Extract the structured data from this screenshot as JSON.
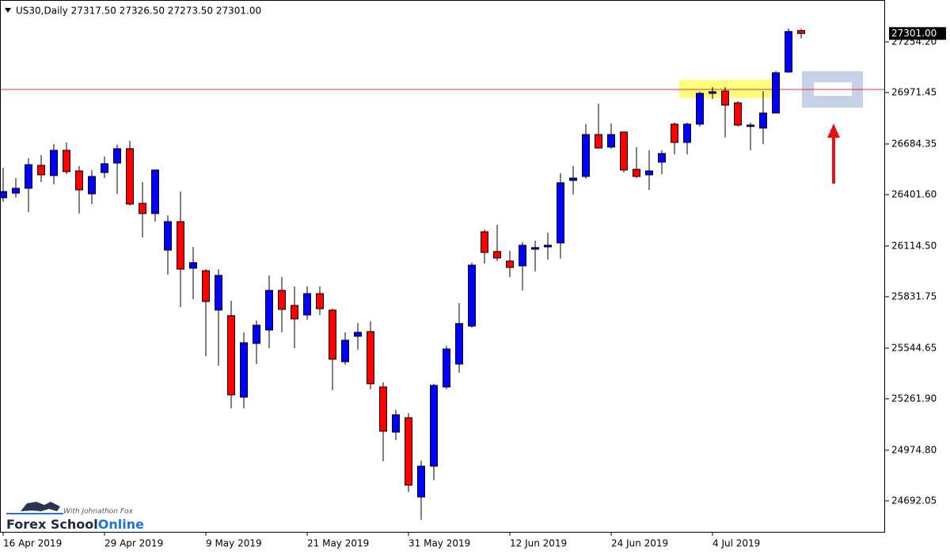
{
  "chart_data": {
    "type": "candlestick",
    "title": "US30,Daily 27317.50 27326.50 27273.50 27301.00",
    "categories": [
      "16 Apr 2019",
      null,
      null,
      null,
      null,
      null,
      null,
      null,
      "29 Apr 2019",
      null,
      null,
      null,
      null,
      null,
      null,
      null,
      "9 May 2019",
      null,
      null,
      null,
      null,
      null,
      null,
      null,
      "21 May 2019",
      null,
      null,
      null,
      null,
      null,
      null,
      null,
      "31 May 2019",
      null,
      null,
      null,
      null,
      null,
      null,
      null,
      "12 Jun 2019",
      null,
      null,
      null,
      null,
      null,
      null,
      null,
      "24 Jun 2019",
      null,
      null,
      null,
      null,
      null,
      null,
      null,
      "4 Jul 2019",
      null,
      null,
      null,
      null,
      null,
      null,
      null
    ],
    "open": [
      26384,
      26410,
      26437,
      26565,
      26508,
      26649,
      26534,
      26406,
      26525,
      26578,
      26658,
      26353,
      26296,
      26092,
      26251,
      25991,
      25977,
      25757,
      25726,
      25271,
      25571,
      25646,
      25867,
      25783,
      25730,
      25849,
      25757,
      25469,
      25611,
      25637,
      25328,
      25076,
      25156,
      24714,
      24886,
      25328,
      25456,
      25668,
      26194,
      26084,
      26031,
      26004,
      26097,
      26110,
      26132,
      26481,
      26503,
      26737,
      26667,
      26751,
      26543,
      26512,
      26583,
      26795,
      26693,
      26795,
      26967,
      26980,
      26914,
      26782,
      26773,
      26857,
      27086,
      27317.5
    ],
    "high": [
      26552,
      26494,
      26605,
      26622,
      26684,
      26693,
      26561,
      26539,
      26614,
      26680,
      26702,
      26472,
      26539,
      26287,
      26419,
      26110,
      25986,
      25986,
      25810,
      25633,
      25699,
      25951,
      25942,
      25889,
      25889,
      25889,
      25765,
      25633,
      25686,
      25695,
      25355,
      25200,
      25182,
      24917,
      25346,
      25558,
      25796,
      26022,
      26207,
      26234,
      26088,
      26137,
      26145,
      26190,
      26521,
      26561,
      26795,
      26910,
      26799,
      26751,
      26667,
      26649,
      26649,
      26804,
      26804,
      26976,
      27002,
      27002,
      26923,
      26804,
      26980,
      27091,
      27329,
      27326.5
    ],
    "low": [
      26362,
      26384,
      26304,
      26472,
      26459,
      26516,
      26296,
      26349,
      26494,
      26406,
      26340,
      26163,
      26251,
      25955,
      25774,
      25818,
      25500,
      25447,
      25209,
      25209,
      25456,
      25545,
      25633,
      25545,
      25704,
      25730,
      25310,
      25452,
      25536,
      25315,
      24913,
      25032,
      24741,
      24586,
      24807,
      25315,
      25408,
      25659,
      26017,
      26031,
      25942,
      25867,
      25973,
      26039,
      26044,
      26402,
      26490,
      26658,
      26658,
      26525,
      26494,
      26428,
      26516,
      26627,
      26627,
      26782,
      26936,
      26720,
      26782,
      26649,
      26684,
      26857,
      27082,
      27273.5
    ],
    "close": [
      26419,
      26437,
      26569,
      26512,
      26649,
      26530,
      26428,
      26503,
      26574,
      26658,
      26349,
      26296,
      26539,
      26251,
      25986,
      26022,
      25805,
      25951,
      25284,
      25575,
      25673,
      25867,
      25761,
      25708,
      25849,
      25765,
      25483,
      25589,
      25633,
      25346,
      25081,
      25173,
      24780,
      24886,
      25337,
      25540,
      25682,
      26008,
      26079,
      26048,
      25995,
      26119,
      26106,
      26119,
      26468,
      26494,
      26737,
      26662,
      26737,
      26539,
      26503,
      26534,
      26631,
      26693,
      26795,
      26967,
      26976,
      26901,
      26790,
      26790,
      26857,
      27082,
      27312,
      27301
    ],
    "up_color": "#0000ff",
    "down_color": "#ff0000",
    "ylim": [
      24515,
      27488
    ],
    "yticks": [
      {
        "value": 27254.2,
        "label": "27254.20"
      },
      26971.45,
      26684.35,
      {
        "value": 26401.6,
        "label": "26401.60"
      },
      {
        "value": 26114.5,
        "label": "26114.50"
      },
      25831.75,
      25544.65,
      {
        "value": 25261.9,
        "label": "25261.90"
      },
      {
        "value": 24974.8,
        "label": "24974.80"
      },
      24692.05
    ],
    "last_price": {
      "value": 27301,
      "label": "27301.00"
    },
    "horizontal_line": {
      "value": 26989,
      "color": "#e03030"
    },
    "watermark": {
      "tagline": "With Johnathon Fox",
      "brand_1": "Forex School",
      "brand_2": "Online"
    }
  }
}
